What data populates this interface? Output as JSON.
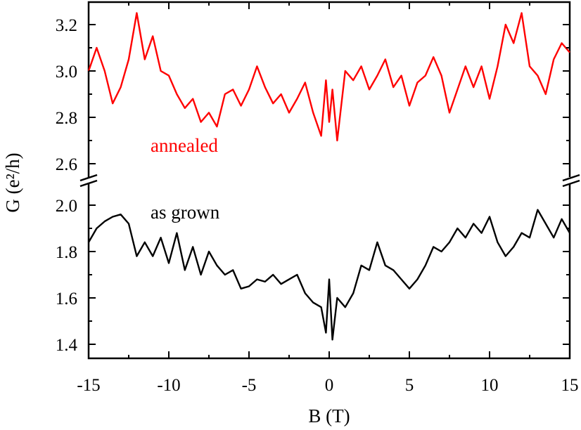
{
  "chart_data": {
    "type": "line",
    "title": "",
    "xlabel": "B (T)",
    "ylabel": "G (e²/h)",
    "xlim": [
      -15,
      15
    ],
    "x_ticks": [
      -15,
      -10,
      -5,
      0,
      5,
      10,
      15
    ],
    "x_tick_labels": [
      "-15",
      "-10",
      "-5",
      "0",
      "5",
      "10",
      "15"
    ],
    "axis_break": {
      "lower_max": 2.1,
      "upper_min": 2.55,
      "style": "double slash on both y-axes"
    },
    "y_segments": [
      {
        "name": "upper",
        "ylim": [
          2.55,
          3.3
        ],
        "ticks": [
          2.6,
          2.8,
          3.0,
          3.2
        ],
        "tick_labels": [
          "2.6",
          "2.8",
          "3.0",
          "3.2"
        ]
      },
      {
        "name": "lower",
        "ylim": [
          1.35,
          2.1
        ],
        "ticks": [
          1.4,
          1.6,
          1.8,
          2.0
        ],
        "tick_labels": [
          "1.4",
          "1.6",
          "1.8",
          "2.0"
        ]
      }
    ],
    "grid": false,
    "legend": "none (inline curve labels)",
    "series": [
      {
        "name": "annealed",
        "color": "#ff0000",
        "x": [
          -15,
          -14.5,
          -14,
          -13.5,
          -13,
          -12.5,
          -12,
          -11.5,
          -11,
          -10.5,
          -10,
          -9.5,
          -9,
          -8.5,
          -8,
          -7.5,
          -7,
          -6.5,
          -6,
          -5.5,
          -5,
          -4.5,
          -4,
          -3.5,
          -3,
          -2.5,
          -2,
          -1.5,
          -1,
          -0.5,
          -0.2,
          0,
          0.2,
          0.5,
          1,
          1.5,
          2,
          2.5,
          3,
          3.5,
          4,
          4.5,
          5,
          5.5,
          6,
          6.5,
          7,
          7.5,
          8,
          8.5,
          9,
          9.5,
          10,
          10.5,
          11,
          11.5,
          12,
          12.5,
          13,
          13.5,
          14,
          14.5,
          15
        ],
        "y": [
          3.0,
          3.1,
          3.0,
          2.86,
          2.93,
          3.05,
          3.25,
          3.05,
          3.15,
          3.0,
          2.98,
          2.9,
          2.84,
          2.88,
          2.78,
          2.82,
          2.76,
          2.9,
          2.92,
          2.85,
          2.92,
          3.02,
          2.93,
          2.86,
          2.9,
          2.82,
          2.88,
          2.95,
          2.82,
          2.72,
          2.96,
          2.78,
          2.92,
          2.7,
          3.0,
          2.96,
          3.02,
          2.92,
          2.98,
          3.05,
          2.93,
          2.98,
          2.85,
          2.95,
          2.98,
          3.06,
          2.98,
          2.82,
          2.92,
          3.02,
          2.93,
          3.02,
          2.88,
          3.02,
          3.2,
          3.12,
          3.25,
          3.02,
          2.98,
          2.9,
          3.05,
          3.12,
          3.08
        ]
      },
      {
        "name": "as grown",
        "color": "#000000",
        "x": [
          -15,
          -14.5,
          -14,
          -13.5,
          -13,
          -12.5,
          -12,
          -11.5,
          -11,
          -10.5,
          -10,
          -9.5,
          -9,
          -8.5,
          -8,
          -7.5,
          -7,
          -6.5,
          -6,
          -5.5,
          -5,
          -4.5,
          -4,
          -3.5,
          -3,
          -2.5,
          -2,
          -1.5,
          -1,
          -0.5,
          -0.2,
          0,
          0.2,
          0.5,
          1,
          1.5,
          2,
          2.5,
          3,
          3.5,
          4,
          4.5,
          5,
          5.5,
          6,
          6.5,
          7,
          7.5,
          8,
          8.5,
          9,
          9.5,
          10,
          10.5,
          11,
          11.5,
          12,
          12.5,
          13,
          13.5,
          14,
          14.5,
          15
        ],
        "y": [
          1.84,
          1.9,
          1.93,
          1.95,
          1.96,
          1.92,
          1.78,
          1.84,
          1.78,
          1.86,
          1.75,
          1.88,
          1.72,
          1.82,
          1.7,
          1.8,
          1.74,
          1.7,
          1.72,
          1.64,
          1.65,
          1.68,
          1.67,
          1.7,
          1.66,
          1.68,
          1.7,
          1.62,
          1.58,
          1.56,
          1.45,
          1.68,
          1.42,
          1.6,
          1.56,
          1.62,
          1.74,
          1.72,
          1.84,
          1.74,
          1.72,
          1.68,
          1.64,
          1.68,
          1.74,
          1.82,
          1.8,
          1.84,
          1.9,
          1.86,
          1.92,
          1.88,
          1.95,
          1.84,
          1.78,
          1.82,
          1.88,
          1.86,
          1.98,
          1.92,
          1.86,
          1.94,
          1.88
        ]
      }
    ],
    "annotations": [
      "annealed",
      "as grown"
    ]
  }
}
